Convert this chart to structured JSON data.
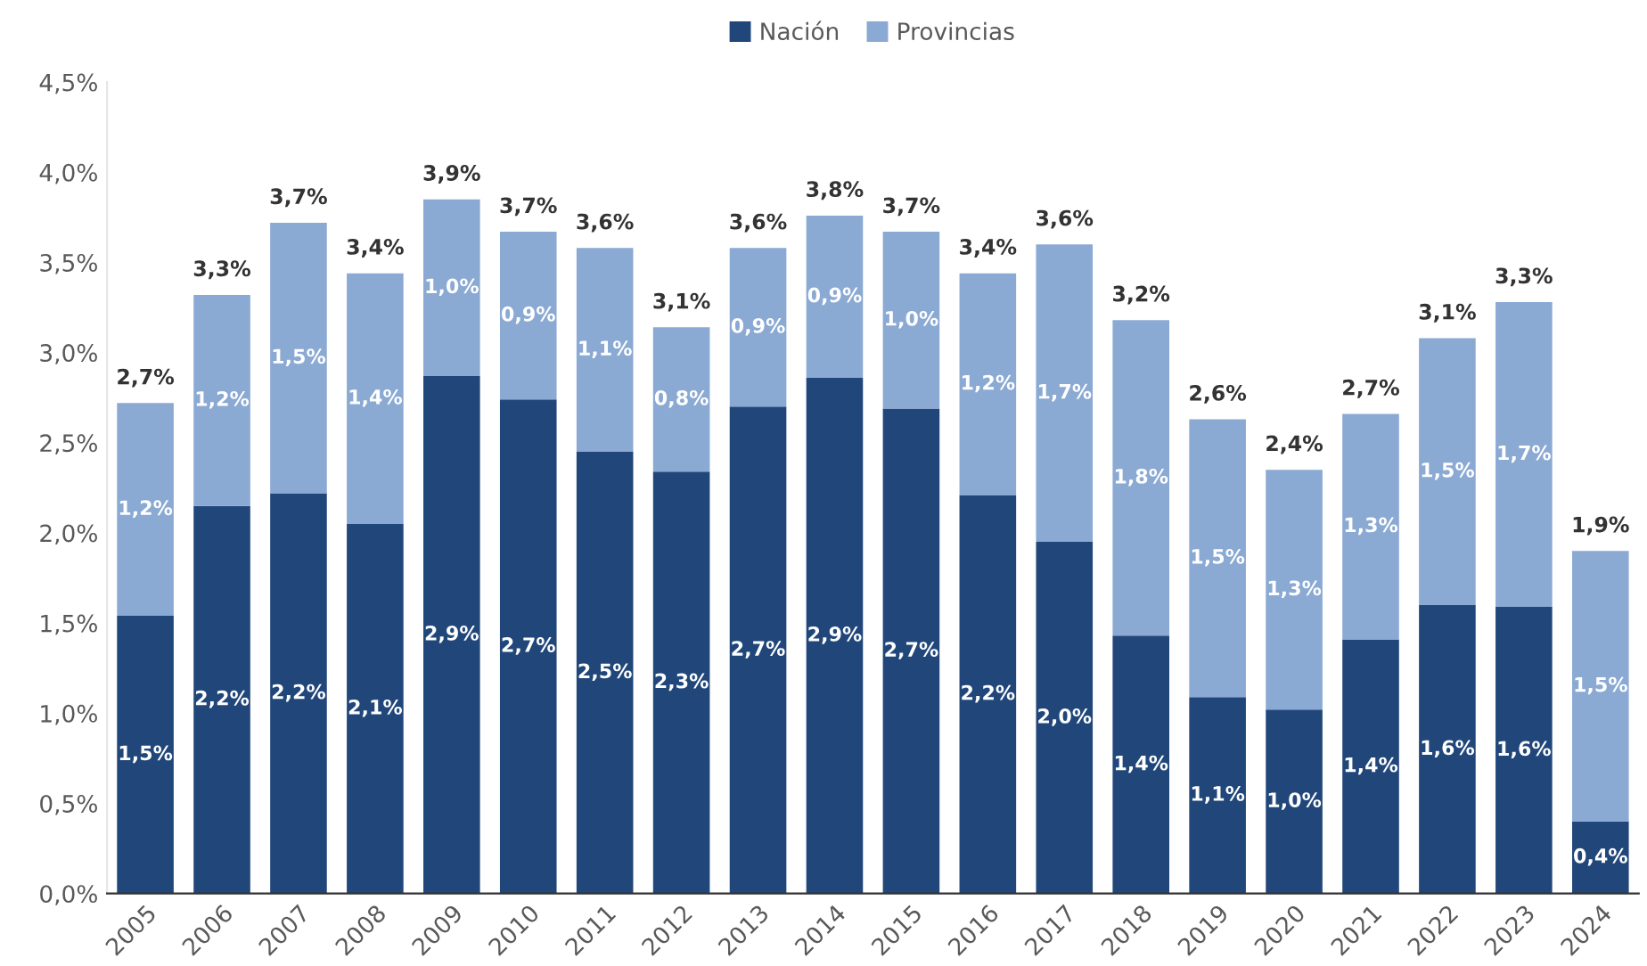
{
  "chart_data": {
    "type": "bar",
    "stacked": true,
    "categories": [
      "2005",
      "2006",
      "2007",
      "2008",
      "2009",
      "2010",
      "2011",
      "2012",
      "2013",
      "2014",
      "2015",
      "2016",
      "2017",
      "2018",
      "2019",
      "2020",
      "2021",
      "2022",
      "2023",
      "2024"
    ],
    "series": [
      {
        "name": "Nación",
        "color": "#21477a",
        "values": [
          1.54,
          2.15,
          2.22,
          2.05,
          2.87,
          2.74,
          2.45,
          2.34,
          2.7,
          2.86,
          2.69,
          2.21,
          1.95,
          1.43,
          1.09,
          1.02,
          1.41,
          1.6,
          1.59,
          0.4
        ],
        "value_labels": [
          "1,5%",
          "2,2%",
          "2,2%",
          "2,1%",
          "2,9%",
          "2,7%",
          "2,5%",
          "2,3%",
          "2,7%",
          "2,9%",
          "2,7%",
          "2,2%",
          "2,0%",
          "1,4%",
          "1,1%",
          "1,0%",
          "1,4%",
          "1,6%",
          "1,6%",
          "0,4%"
        ]
      },
      {
        "name": "Provincias",
        "color": "#8aa9d3",
        "values": [
          1.18,
          1.17,
          1.5,
          1.39,
          0.98,
          0.93,
          1.13,
          0.8,
          0.88,
          0.9,
          0.98,
          1.23,
          1.65,
          1.75,
          1.54,
          1.33,
          1.25,
          1.48,
          1.69,
          1.5
        ],
        "value_labels": [
          "1,2%",
          "1,2%",
          "1,5%",
          "1,4%",
          "1,0%",
          "0,9%",
          "1,1%",
          "0,8%",
          "0,9%",
          "0,9%",
          "1,0%",
          "1,2%",
          "1,7%",
          "1,8%",
          "1,5%",
          "1,3%",
          "1,3%",
          "1,5%",
          "1,7%",
          "1,5%"
        ]
      }
    ],
    "totals": [
      "2,7%",
      "3,3%",
      "3,7%",
      "3,4%",
      "3,9%",
      "3,7%",
      "3,6%",
      "3,1%",
      "3,6%",
      "3,8%",
      "3,7%",
      "3,4%",
      "3,6%",
      "3,2%",
      "2,6%",
      "2,4%",
      "2,7%",
      "3,1%",
      "3,3%",
      "1,9%"
    ],
    "ylim": [
      0,
      4.5
    ],
    "yticks": [
      {
        "value": 0,
        "label": "0,0%"
      },
      {
        "value": 0.5,
        "label": "0,5%"
      },
      {
        "value": 1,
        "label": "1,0%"
      },
      {
        "value": 1.5,
        "label": "1,5%"
      },
      {
        "value": 2,
        "label": "2,0%"
      },
      {
        "value": 2.5,
        "label": "2,5%"
      },
      {
        "value": 3,
        "label": "3,0%"
      },
      {
        "value": 3.5,
        "label": "3,5%"
      },
      {
        "value": 4,
        "label": "4,0%"
      },
      {
        "value": 4.5,
        "label": "4,5%"
      }
    ],
    "grid": false,
    "legend": "top"
  }
}
